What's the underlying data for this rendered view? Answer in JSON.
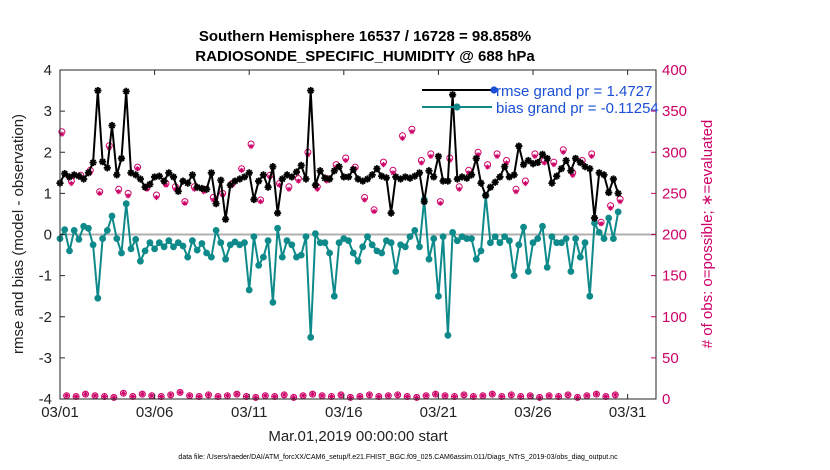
{
  "chart_data": {
    "type": "line",
    "title_line1": "Southern Hemisphere 16537 / 16728 = 98.858%",
    "title_line2": "RADIOSONDE_SPECIFIC_HUMIDITY @ 688 hPa",
    "xlabel": "Mar.01,2019 00:00:00 start",
    "ylabel_left": "rmse and bias (model - observation)",
    "ylabel_right": "# of obs: o=possible; ∗=evaluated",
    "footnote": "data file: /Users/raeder/DAI/ATM_forcXX/CAM6_setup/f.e21.FHIST_BGC.f09_025.CAM6assim.011/Diags_NTrS_2019-03/obs_diag_output.nc",
    "xlim": [
      0,
      31.5
    ],
    "ylim_left": [
      -4,
      4
    ],
    "ylim_right": [
      0,
      400
    ],
    "x_ticks": [
      0,
      5,
      10,
      15,
      20,
      25,
      30
    ],
    "x_tick_labels": [
      "03/01",
      "03/06",
      "03/11",
      "03/16",
      "03/21",
      "03/26",
      "03/31"
    ],
    "y_left_ticks": [
      -4,
      -3,
      -2,
      -1,
      0,
      1,
      2,
      3,
      4
    ],
    "y_left_tick_labels": [
      "-4",
      "-3",
      "-2",
      "-1",
      "0",
      "1",
      "2",
      "3",
      "4"
    ],
    "y_right_ticks": [
      0,
      50,
      100,
      150,
      200,
      250,
      300,
      350,
      400
    ],
    "y_right_tick_labels": [
      "0",
      "50",
      "100",
      "150",
      "200",
      "250",
      "300",
      "350",
      "400"
    ],
    "time_step_days": 0.25,
    "series": [
      {
        "name": "rmse",
        "legend": "rmse grand pr = 1.4727",
        "color": "#000000",
        "values": [
          1.25,
          1.48,
          1.4,
          1.45,
          1.42,
          1.35,
          1.5,
          1.75,
          3.5,
          1.77,
          1.62,
          2.65,
          1.45,
          1.85,
          3.48,
          1.5,
          1.45,
          1.35,
          1.15,
          1.22,
          1.4,
          1.42,
          1.3,
          1.5,
          1.4,
          1.05,
          1.3,
          1.25,
          1.45,
          1.15,
          1.12,
          1.1,
          1.5,
          0.75,
          1.32,
          0.37,
          1.2,
          1.3,
          1.35,
          1.4,
          1.5,
          0.85,
          1.3,
          1.45,
          1.15,
          1.65,
          0.52,
          1.35,
          1.45,
          1.4,
          1.52,
          1.68,
          1.35,
          3.5,
          1.2,
          1.55,
          1.37,
          1.35,
          1.55,
          1.65,
          1.4,
          1.4,
          1.58,
          1.35,
          1.3,
          1.35,
          1.45,
          1.6,
          1.42,
          1.38,
          0.52,
          1.4,
          1.35,
          1.4,
          1.37,
          1.42,
          1.5,
          0.8,
          1.55,
          1.4,
          1.9,
          1.3,
          1.3,
          3.4,
          1.35,
          1.4,
          1.37,
          1.45,
          1.85,
          1.25,
          0.95,
          1.15,
          1.27,
          1.4,
          1.65,
          1.4,
          1.45,
          2.15,
          1.7,
          1.8,
          1.72,
          1.75,
          1.95,
          1.85,
          1.25,
          1.42,
          1.6,
          1.8,
          1.55,
          1.85,
          1.75,
          1.65,
          1.6,
          0.4,
          1.5,
          1.45,
          1.02,
          1.35,
          1.0
        ]
      },
      {
        "name": "bias",
        "legend": "bias grand pr = -0.11254",
        "color": "#0e8a8a",
        "values": [
          -0.1,
          0.12,
          -0.4,
          0.1,
          -0.12,
          0.2,
          0.15,
          -0.25,
          -1.55,
          -0.1,
          0.1,
          0.45,
          -0.1,
          -0.45,
          0.75,
          -0.35,
          -0.12,
          -0.65,
          -0.4,
          -0.2,
          -0.35,
          -0.2,
          -0.3,
          -0.15,
          -0.3,
          -0.2,
          -0.28,
          -0.55,
          -0.15,
          -0.38,
          -0.22,
          -0.45,
          -0.55,
          0.1,
          -0.2,
          -0.6,
          -0.25,
          -0.18,
          -0.25,
          -0.2,
          -1.35,
          -0.05,
          -0.75,
          -0.55,
          -0.15,
          -1.65,
          0.15,
          -0.55,
          -0.15,
          -0.25,
          -0.55,
          -0.5,
          -0.05,
          -2.5,
          0.02,
          -0.2,
          -0.2,
          -0.45,
          -1.5,
          -0.2,
          -0.1,
          -0.15,
          -0.45,
          -0.65,
          -0.3,
          -0.05,
          -0.25,
          -0.4,
          -0.45,
          -0.15,
          -0.2,
          -0.9,
          -0.25,
          -0.3,
          -0.05,
          0.1,
          -0.3,
          0.85,
          -0.6,
          -0.1,
          -1.5,
          -0.05,
          -2.45,
          0.05,
          -0.15,
          -0.05,
          -0.1,
          -0.1,
          -0.6,
          -0.4,
          0.95,
          -0.2,
          -0.05,
          -0.2,
          -0.05,
          -0.15,
          -1.0,
          -0.25,
          0.18,
          -0.9,
          -0.2,
          -0.1,
          0.2,
          -0.8,
          -0.05,
          -0.2,
          -0.2,
          -0.1,
          -0.9,
          -0.1,
          -0.55,
          -0.2,
          -1.5,
          0.28,
          0.05,
          -0.1,
          0.4,
          -0.1,
          0.55
        ]
      },
      {
        "name": "# obs possible",
        "color": "#cc0066",
        "values": [
          325,
          4,
          265,
          3,
          272,
          6,
          278,
          4,
          252,
          3,
          308,
          2,
          255,
          7,
          250,
          3,
          282,
          6,
          257,
          4,
          248,
          3,
          262,
          5,
          258,
          8,
          240,
          4,
          258,
          3,
          255,
          5,
          245,
          3,
          250,
          4,
          262,
          6,
          280,
          3,
          310,
          2,
          242,
          4,
          272,
          3,
          262,
          5,
          258,
          2,
          268,
          4,
          300,
          6,
          258,
          4,
          268,
          3,
          285,
          5,
          293,
          2,
          282,
          3,
          245,
          5,
          230,
          3,
          288,
          4,
          278,
          5,
          320,
          3,
          328,
          2,
          290,
          4,
          298,
          6,
          240,
          4,
          293,
          3,
          258,
          5,
          278,
          3,
          300,
          4,
          285,
          6,
          298,
          3,
          290,
          5,
          255,
          3,
          265,
          4,
          298,
          2,
          290,
          4,
          288,
          3,
          303,
          5,
          275,
          2,
          290,
          4,
          298,
          6,
          215,
          3,
          235,
          5,
          243
        ]
      },
      {
        "name": "# obs evaluated",
        "color": "#cc0066",
        "values": [
          322,
          4,
          262,
          3,
          270,
          6,
          275,
          4,
          250,
          3,
          305,
          2,
          252,
          7,
          247,
          3,
          280,
          6,
          255,
          4,
          245,
          3,
          260,
          5,
          255,
          8,
          238,
          4,
          255,
          3,
          252,
          5,
          242,
          3,
          248,
          4,
          260,
          6,
          278,
          3,
          307,
          2,
          240,
          4,
          270,
          3,
          260,
          5,
          255,
          2,
          265,
          4,
          297,
          6,
          255,
          4,
          265,
          3,
          282,
          5,
          290,
          2,
          280,
          3,
          242,
          5,
          228,
          3,
          285,
          4,
          275,
          5,
          317,
          3,
          325,
          2,
          287,
          4,
          295,
          6,
          238,
          4,
          290,
          3,
          255,
          5,
          275,
          3,
          297,
          4,
          282,
          6,
          295,
          3,
          287,
          5,
          252,
          3,
          262,
          4,
          295,
          2,
          287,
          4,
          285,
          3,
          300,
          5,
          272,
          2,
          287,
          4,
          295,
          6,
          213,
          3,
          232,
          5,
          240
        ]
      }
    ]
  }
}
